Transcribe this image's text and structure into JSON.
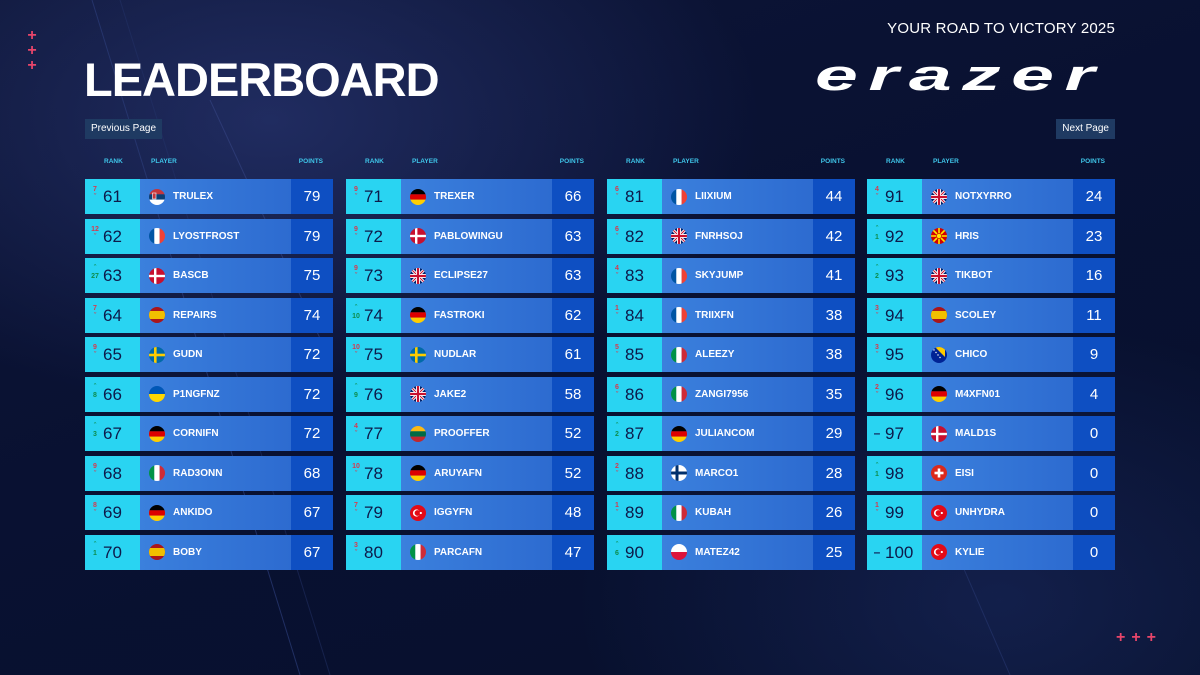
{
  "header": {
    "tagline": "YOUR ROAD TO VICTORY 2025",
    "title": "LEADERBOARD",
    "brand": "erazer"
  },
  "nav": {
    "prev_label": "Previous Page",
    "next_label": "Next Page"
  },
  "columns": {
    "rank": "RANK",
    "player": "PLAYER",
    "points": "POINTS"
  },
  "decorations": {
    "top_left": [
      "+",
      "+",
      "+"
    ],
    "bottom_right": "+++"
  },
  "colors": {
    "accent_cyan": "#29d4f2",
    "header_text": "#3fc6ea",
    "player_cell": "#3b80dd",
    "points_cell": "#0e4fc2",
    "rank_up": "#0d8c4c",
    "rank_down": "#d63a4f",
    "decoration_pink": "#e7456a"
  },
  "tables": [
    {
      "rows": [
        {
          "rank": "61",
          "dir": "down",
          "change": "7",
          "flag": "rs",
          "player": "TRULEX",
          "points": "79"
        },
        {
          "rank": "62",
          "dir": "down",
          "change": "12",
          "flag": "fr",
          "player": "LYOSTFROST",
          "points": "79"
        },
        {
          "rank": "63",
          "dir": "up",
          "change": "27",
          "flag": "dk",
          "player": "BASCB",
          "points": "75"
        },
        {
          "rank": "64",
          "dir": "down",
          "change": "7",
          "flag": "es",
          "player": "REPAIRS",
          "points": "74"
        },
        {
          "rank": "65",
          "dir": "down",
          "change": "9",
          "flag": "se",
          "player": "GUDN",
          "points": "72"
        },
        {
          "rank": "66",
          "dir": "up",
          "change": "8",
          "flag": "ua",
          "player": "P1NGFNZ",
          "points": "72"
        },
        {
          "rank": "67",
          "dir": "up",
          "change": "3",
          "flag": "de",
          "player": "CORNIFN",
          "points": "72"
        },
        {
          "rank": "68",
          "dir": "down",
          "change": "9",
          "flag": "it",
          "player": "RAD3ONN",
          "points": "68"
        },
        {
          "rank": "69",
          "dir": "down",
          "change": "8",
          "flag": "de",
          "player": "ANKIDO",
          "points": "67"
        },
        {
          "rank": "70",
          "dir": "up",
          "change": "1",
          "flag": "es",
          "player": "BOBY",
          "points": "67"
        }
      ]
    },
    {
      "rows": [
        {
          "rank": "71",
          "dir": "down",
          "change": "9",
          "flag": "de",
          "player": "TREXER",
          "points": "66"
        },
        {
          "rank": "72",
          "dir": "down",
          "change": "9",
          "flag": "dk",
          "player": "PABLOWINGU",
          "points": "63"
        },
        {
          "rank": "73",
          "dir": "down",
          "change": "9",
          "flag": "gb",
          "player": "ECLIPSE27",
          "points": "63"
        },
        {
          "rank": "74",
          "dir": "up",
          "change": "10",
          "flag": "de",
          "player": "FASTROKI",
          "points": "62"
        },
        {
          "rank": "75",
          "dir": "down",
          "change": "10",
          "flag": "se",
          "player": "NUDLAR",
          "points": "61"
        },
        {
          "rank": "76",
          "dir": "up",
          "change": "9",
          "flag": "gb",
          "player": "JAKE2",
          "points": "58"
        },
        {
          "rank": "77",
          "dir": "down",
          "change": "4",
          "flag": "lt",
          "player": "PROOFFER",
          "points": "52"
        },
        {
          "rank": "78",
          "dir": "down",
          "change": "10",
          "flag": "de",
          "player": "ARUYAFN",
          "points": "52"
        },
        {
          "rank": "79",
          "dir": "down",
          "change": "7",
          "flag": "tr",
          "player": "IGGYFN",
          "points": "48"
        },
        {
          "rank": "80",
          "dir": "down",
          "change": "3",
          "flag": "it",
          "player": "PARCAFN",
          "points": "47"
        }
      ]
    },
    {
      "rows": [
        {
          "rank": "81",
          "dir": "down",
          "change": "6",
          "flag": "fr",
          "player": "LIIXIUM",
          "points": "44"
        },
        {
          "rank": "82",
          "dir": "down",
          "change": "6",
          "flag": "gb",
          "player": "FNRHSOJ",
          "points": "42"
        },
        {
          "rank": "83",
          "dir": "down",
          "change": "4",
          "flag": "fr",
          "player": "SKYJUMP",
          "points": "41"
        },
        {
          "rank": "84",
          "dir": "down",
          "change": "1",
          "flag": "fr",
          "player": "TRIIXFN",
          "points": "38"
        },
        {
          "rank": "85",
          "dir": "down",
          "change": "5",
          "flag": "it",
          "player": "ALEEZY",
          "points": "38"
        },
        {
          "rank": "86",
          "dir": "down",
          "change": "6",
          "flag": "it",
          "player": "ZANGI7956",
          "points": "35"
        },
        {
          "rank": "87",
          "dir": "up",
          "change": "2",
          "flag": "de",
          "player": "JULIANCOM",
          "points": "29"
        },
        {
          "rank": "88",
          "dir": "down",
          "change": "2",
          "flag": "fi",
          "player": "MARCO1",
          "points": "28"
        },
        {
          "rank": "89",
          "dir": "down",
          "change": "1",
          "flag": "it",
          "player": "KUBAH",
          "points": "26"
        },
        {
          "rank": "90",
          "dir": "up",
          "change": "6",
          "flag": "pl",
          "player": "MATEZ42",
          "points": "25"
        }
      ]
    },
    {
      "rows": [
        {
          "rank": "91",
          "dir": "down",
          "change": "4",
          "flag": "gb",
          "player": "NOTXYRRO",
          "points": "24"
        },
        {
          "rank": "92",
          "dir": "up",
          "change": "1",
          "flag": "mk",
          "player": "HRIS",
          "points": "23"
        },
        {
          "rank": "93",
          "dir": "up",
          "change": "2",
          "flag": "gb",
          "player": "TIKBOT",
          "points": "16"
        },
        {
          "rank": "94",
          "dir": "down",
          "change": "3",
          "flag": "es",
          "player": "SCOLEY",
          "points": "11"
        },
        {
          "rank": "95",
          "dir": "down",
          "change": "3",
          "flag": "ba",
          "player": "CHICO",
          "points": "9"
        },
        {
          "rank": "96",
          "dir": "down",
          "change": "2",
          "flag": "de",
          "player": "M4XFN01",
          "points": "4"
        },
        {
          "rank": "97",
          "dir": "none",
          "change": "",
          "flag": "dk",
          "player": "MALD1S",
          "points": "0"
        },
        {
          "rank": "98",
          "dir": "up",
          "change": "1",
          "flag": "ch",
          "player": "EISI",
          "points": "0"
        },
        {
          "rank": "99",
          "dir": "down",
          "change": "1",
          "flag": "tr",
          "player": "UNHYDRA",
          "points": "0"
        },
        {
          "rank": "100",
          "dir": "none",
          "change": "",
          "flag": "tr",
          "player": "KYLIE",
          "points": "0"
        }
      ]
    }
  ]
}
